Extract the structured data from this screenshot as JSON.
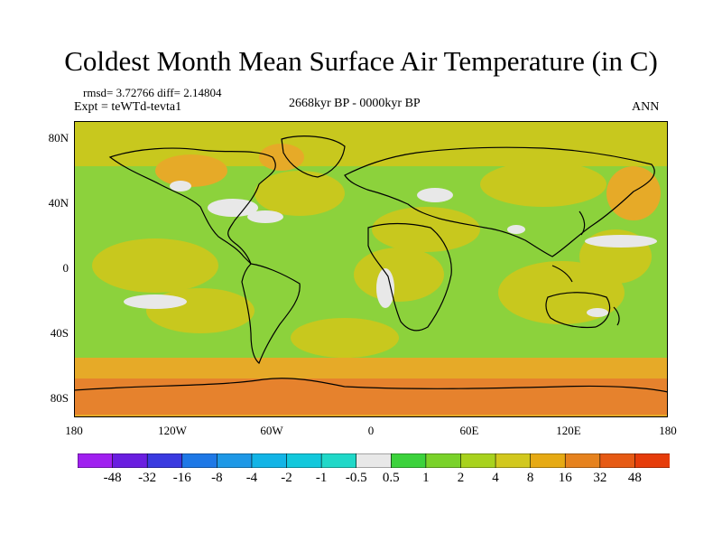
{
  "title": "Coldest Month Mean Surface Air Temperature (in C)",
  "stats": "rmsd= 3.72766 diff= 2.14804",
  "expt": "Expt = teWTd-tevta1",
  "period": "2668kyr BP - 0000kyr BP",
  "season": "ANN",
  "lat_labels": [
    "80N",
    "40N",
    "0",
    "40S",
    "80S"
  ],
  "lon_labels": [
    "180",
    "120W",
    "60W",
    "0",
    "60E",
    "120E",
    "180"
  ],
  "colorbar": {
    "labels": [
      "-48",
      "-32",
      "-16",
      "-8",
      "-4",
      "-2",
      "-1",
      "-0.5",
      "0.5",
      "1",
      "2",
      "4",
      "8",
      "16",
      "32",
      "48"
    ],
    "colors": [
      "#a020f0",
      "#6a1ee0",
      "#3a3ae0",
      "#1e78e6",
      "#1e98e6",
      "#12b4e6",
      "#12c8dc",
      "#20d8c8",
      "#e8e8e8",
      "#3cd23c",
      "#7ad22a",
      "#a8d21e",
      "#d2c81e",
      "#e6aa14",
      "#e6821e",
      "#e65a14",
      "#e63c0a"
    ]
  },
  "map_colors": {
    "ocean_base": "#8cd23c",
    "warm": "#c8c81e",
    "warmer": "#e6aa28",
    "hot": "#e6822d",
    "neutral": "#e8e8e8",
    "cool": "#20d0c8",
    "coast": "#000000"
  }
}
